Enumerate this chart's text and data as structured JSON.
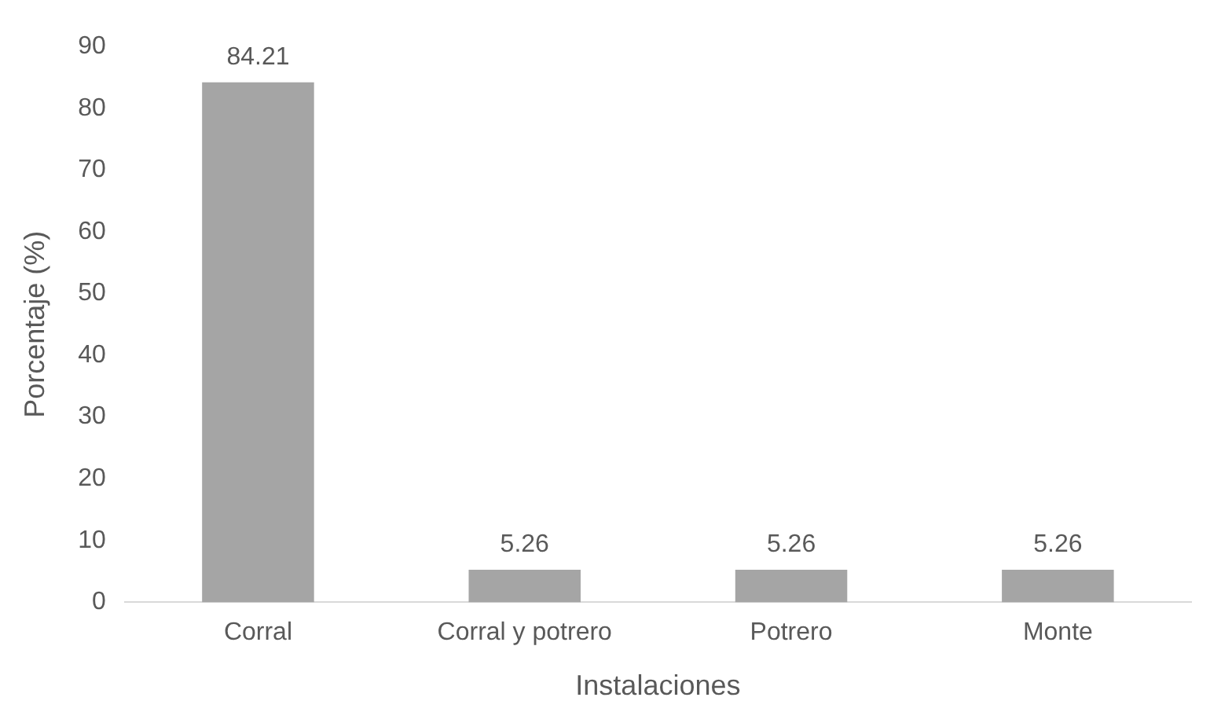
{
  "chart_data": {
    "type": "bar",
    "xlabel": "Instalaciones",
    "ylabel": "Porcentaje (%)",
    "categories": [
      "Corral",
      "Corral y potrero",
      "Potrero",
      "Monte"
    ],
    "values": [
      84.21,
      5.26,
      5.26,
      5.26
    ],
    "color": "#a5a5a5",
    "ylim": [
      0,
      90
    ],
    "yticks": [
      0,
      10,
      20,
      30,
      40,
      50,
      60,
      70,
      80,
      90
    ],
    "grid": false,
    "data_labels": true
  }
}
